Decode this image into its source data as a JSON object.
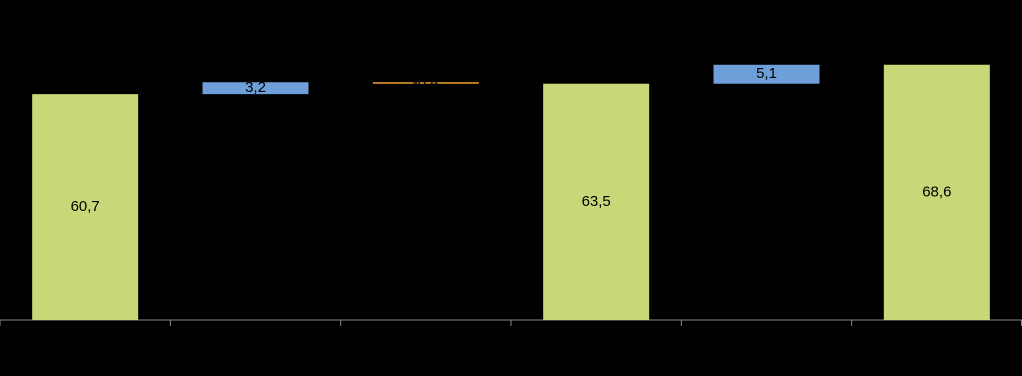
{
  "chart_data": {
    "type": "waterfall",
    "categories": [
      null,
      null,
      null,
      null,
      null,
      null
    ],
    "values": [
      60.7,
      3.2,
      -0.4,
      63.5,
      5.1,
      68.6
    ],
    "value_labels": [
      "60,7",
      "3,2",
      "-0,4",
      "63,5",
      "5,1",
      "68,6"
    ],
    "is_total": [
      true,
      false,
      false,
      true,
      false,
      true
    ],
    "colors": [
      "#c8d879",
      "#6f9fd8",
      "#f0a030",
      "#c8d879",
      "#6f9fd8",
      "#c8d879"
    ],
    "ylim": [
      0,
      86
    ]
  }
}
